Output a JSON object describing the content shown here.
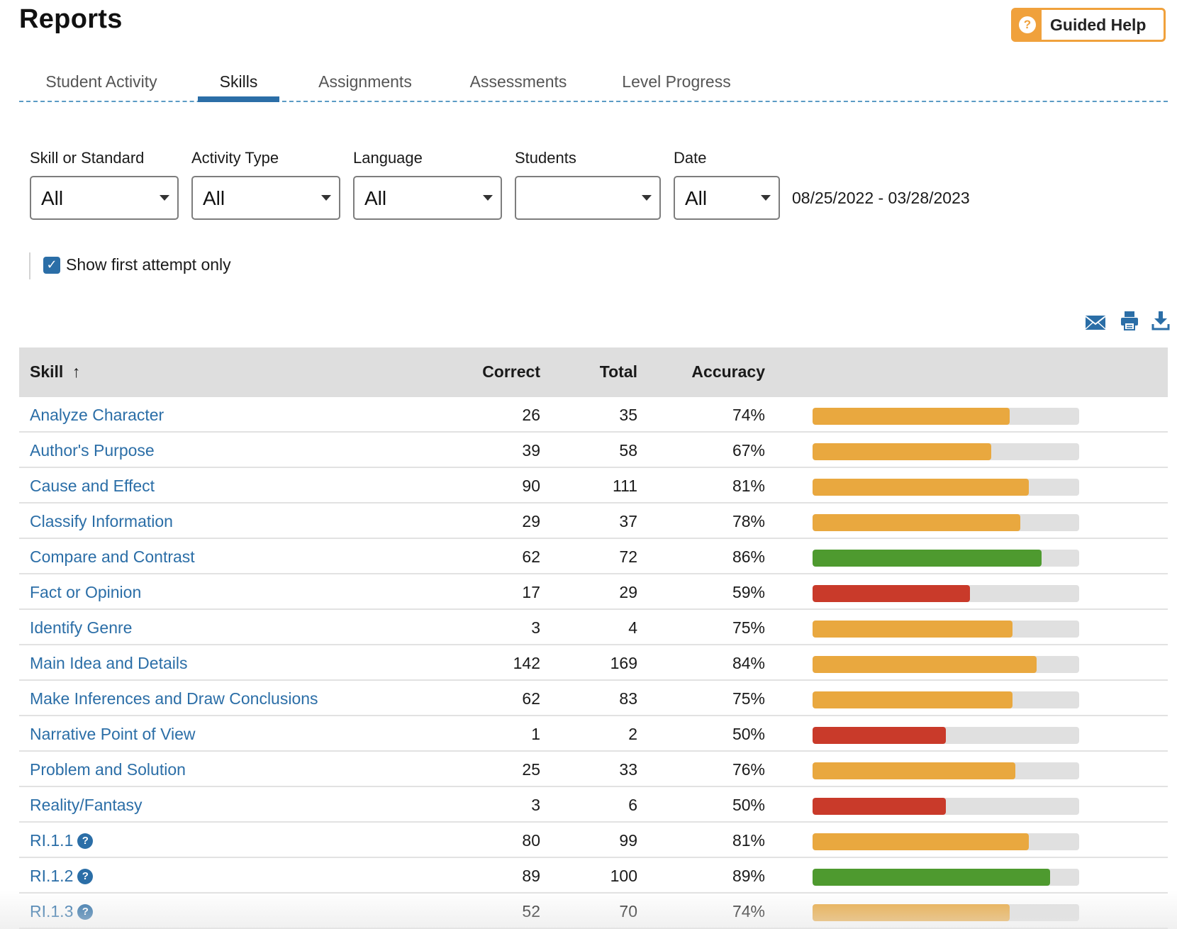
{
  "header": {
    "title": "Reports",
    "help_label": "Guided Help",
    "help_icon": "?"
  },
  "tabs": [
    {
      "label": "Student Activity",
      "active": false
    },
    {
      "label": "Skills",
      "active": true
    },
    {
      "label": "Assignments",
      "active": false
    },
    {
      "label": "Assessments",
      "active": false
    },
    {
      "label": "Level Progress",
      "active": false
    }
  ],
  "filters": {
    "skill": {
      "label": "Skill or Standard",
      "value": "All"
    },
    "activity": {
      "label": "Activity Type",
      "value": "All"
    },
    "language": {
      "label": "Language",
      "value": "All"
    },
    "students": {
      "label": "Students",
      "value": ""
    },
    "date": {
      "label": "Date",
      "value": "All"
    },
    "date_range": "08/25/2022 - 03/28/2023"
  },
  "options": {
    "first_attempt_label": "Show first attempt only",
    "first_attempt_checked": true
  },
  "toolbar": {
    "email_icon": "email-icon",
    "print_icon": "print-icon",
    "download_icon": "download-icon"
  },
  "table": {
    "headers": {
      "skill": "Skill",
      "sort_arrow": "↑",
      "correct": "Correct",
      "total": "Total",
      "accuracy": "Accuracy"
    },
    "rows": [
      {
        "skill": "Analyze Character",
        "correct": "26",
        "total": "35",
        "accuracy": "74%",
        "pct": 74,
        "status": "orange",
        "help": false
      },
      {
        "skill": "Author's Purpose",
        "correct": "39",
        "total": "58",
        "accuracy": "67%",
        "pct": 67,
        "status": "orange",
        "help": false
      },
      {
        "skill": "Cause and Effect",
        "correct": "90",
        "total": "111",
        "accuracy": "81%",
        "pct": 81,
        "status": "orange",
        "help": false
      },
      {
        "skill": "Classify Information",
        "correct": "29",
        "total": "37",
        "accuracy": "78%",
        "pct": 78,
        "status": "orange",
        "help": false
      },
      {
        "skill": "Compare and Contrast",
        "correct": "62",
        "total": "72",
        "accuracy": "86%",
        "pct": 86,
        "status": "green",
        "help": false
      },
      {
        "skill": "Fact or Opinion",
        "correct": "17",
        "total": "29",
        "accuracy": "59%",
        "pct": 59,
        "status": "red",
        "help": false
      },
      {
        "skill": "Identify Genre",
        "correct": "3",
        "total": "4",
        "accuracy": "75%",
        "pct": 75,
        "status": "orange",
        "help": false
      },
      {
        "skill": "Main Idea and Details",
        "correct": "142",
        "total": "169",
        "accuracy": "84%",
        "pct": 84,
        "status": "orange",
        "help": false
      },
      {
        "skill": "Make Inferences and Draw Conclusions",
        "correct": "62",
        "total": "83",
        "accuracy": "75%",
        "pct": 75,
        "status": "orange",
        "help": false
      },
      {
        "skill": "Narrative Point of View",
        "correct": "1",
        "total": "2",
        "accuracy": "50%",
        "pct": 50,
        "status": "red",
        "help": false
      },
      {
        "skill": "Problem and Solution",
        "correct": "25",
        "total": "33",
        "accuracy": "76%",
        "pct": 76,
        "status": "orange",
        "help": false
      },
      {
        "skill": "Reality/Fantasy",
        "correct": "3",
        "total": "6",
        "accuracy": "50%",
        "pct": 50,
        "status": "red",
        "help": false
      },
      {
        "skill": "RI.1.1",
        "correct": "80",
        "total": "99",
        "accuracy": "81%",
        "pct": 81,
        "status": "orange",
        "help": true
      },
      {
        "skill": "RI.1.2",
        "correct": "89",
        "total": "100",
        "accuracy": "89%",
        "pct": 89,
        "status": "green",
        "help": true
      },
      {
        "skill": "RI.1.3",
        "correct": "52",
        "total": "70",
        "accuracy": "74%",
        "pct": 74,
        "status": "orange",
        "help": true
      }
    ]
  },
  "colors": {
    "accent": "#2b6ea7",
    "help_orange": "#f0a13c",
    "bar_orange": "#e9a83f",
    "bar_green": "#4e9a2f",
    "bar_red": "#c93a2a",
    "bar_track": "#e0e0e0"
  }
}
